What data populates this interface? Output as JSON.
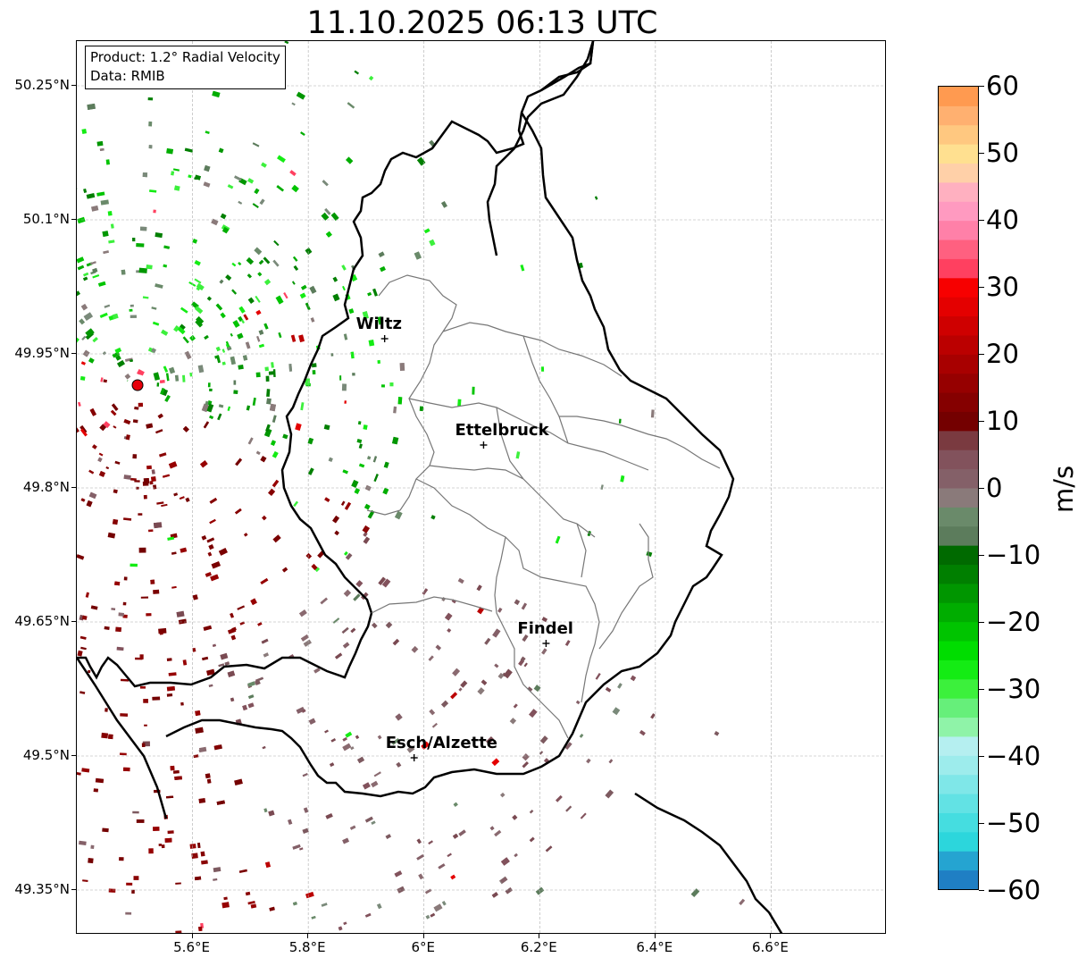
{
  "title": "11.10.2025 06:13 UTC",
  "info": {
    "product": "Product: 1.2° Radial Velocity",
    "data": "Data: RMIB"
  },
  "map": {
    "lon_range": [
      5.4,
      6.8
    ],
    "lat_range": [
      49.3,
      50.3
    ],
    "lat_ticks": [
      {
        "value": 50.25,
        "label": "50.25°N"
      },
      {
        "value": 50.1,
        "label": "50.1°N"
      },
      {
        "value": 49.95,
        "label": "49.95°N"
      },
      {
        "value": 49.8,
        "label": "49.8°N"
      },
      {
        "value": 49.65,
        "label": "49.65°N"
      },
      {
        "value": 49.5,
        "label": "49.5°N"
      },
      {
        "value": 49.35,
        "label": "49.35°N"
      }
    ],
    "lon_ticks": [
      {
        "value": 5.6,
        "label": "5.6°E"
      },
      {
        "value": 5.8,
        "label": "5.8°E"
      },
      {
        "value": 6.0,
        "label": "6°E"
      },
      {
        "value": 6.2,
        "label": "6.2°E"
      },
      {
        "value": 6.4,
        "label": "6.4°E"
      },
      {
        "value": 6.6,
        "label": "6.6°E"
      }
    ],
    "radar_site": {
      "lon": 5.505,
      "lat": 49.915,
      "color": "#e8000b"
    },
    "cities": [
      {
        "name": "Wiltz",
        "lon": 5.932,
        "lat": 49.967
      },
      {
        "name": "Ettelbruck",
        "lon": 6.103,
        "lat": 49.848
      },
      {
        "name": "Findel",
        "lon": 6.211,
        "lat": 49.626
      },
      {
        "name": "Esch/Alzette",
        "lon": 5.983,
        "lat": 49.498
      }
    ],
    "grid": true
  },
  "colorbar": {
    "label": "m/s",
    "min": -60,
    "max": 60,
    "ticks": [
      {
        "value": 60,
        "label": "60"
      },
      {
        "value": 50,
        "label": "50"
      },
      {
        "value": 40,
        "label": "40"
      },
      {
        "value": 30,
        "label": "30"
      },
      {
        "value": 20,
        "label": "20"
      },
      {
        "value": 10,
        "label": "10"
      },
      {
        "value": 0,
        "label": "0"
      },
      {
        "value": -10,
        "label": "−10"
      },
      {
        "value": -20,
        "label": "−20"
      },
      {
        "value": -30,
        "label": "−30"
      },
      {
        "value": -40,
        "label": "−40"
      },
      {
        "value": -50,
        "label": "−50"
      },
      {
        "value": -60,
        "label": "−60"
      }
    ],
    "colors": [
      "#1f7fc4",
      "#25a4d1",
      "#2cd6dc",
      "#45dde0",
      "#62e2e4",
      "#7fe7e8",
      "#9decec",
      "#b5eff0",
      "#8ff3a8",
      "#66ef7a",
      "#3cf03c",
      "#14ec14",
      "#00dd00",
      "#00c400",
      "#00ad00",
      "#009600",
      "#007f00",
      "#006a00",
      "#5c7c5c",
      "#6a8a6a",
      "#8a7a7a",
      "#846068",
      "#82525c",
      "#7a3a40",
      "#740000",
      "#850000",
      "#960000",
      "#a80000",
      "#bb0000",
      "#cf0000",
      "#e40000",
      "#f70000",
      "#ff4060",
      "#ff6080",
      "#ff80a8",
      "#ff9ac0",
      "#ffb0c0",
      "#ffd0a8",
      "#ffe090",
      "#ffc880",
      "#ffb070",
      "#ff9a50"
    ],
    "color_range": [
      -60,
      60
    ]
  }
}
